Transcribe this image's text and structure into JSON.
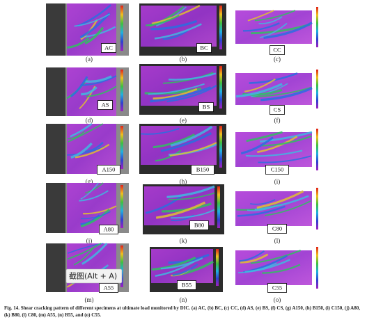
{
  "panels": [
    {
      "letter": "(a)",
      "specimen": "AC"
    },
    {
      "letter": "(b)",
      "specimen": "BC"
    },
    {
      "letter": "(c)",
      "specimen": "CC"
    },
    {
      "letter": "(d)",
      "specimen": "AS"
    },
    {
      "letter": "(e)",
      "specimen": "BS"
    },
    {
      "letter": "(f)",
      "specimen": "CS"
    },
    {
      "letter": "(g)",
      "specimen": "A150"
    },
    {
      "letter": "(h)",
      "specimen": "B150"
    },
    {
      "letter": "(i)",
      "specimen": "C150"
    },
    {
      "letter": "(j)",
      "specimen": "A80"
    },
    {
      "letter": "(k)",
      "specimen": "B80"
    },
    {
      "letter": "(l)",
      "specimen": "C80"
    },
    {
      "letter": "(m)",
      "specimen": "A55"
    },
    {
      "letter": "(n)",
      "specimen": "B55"
    },
    {
      "letter": "(o)",
      "specimen": "C55"
    }
  ],
  "tooltip": "截图(Alt + A)",
  "caption": "Fig. 14. Shear cracking pattern of different specimens at ultimate load monitored by DIC. (a) AC, (b) BC, (c) CC, (d) AS, (e) BS, (f) CS, (g) A150, (h) B150, (i) C150, (j) A80, (k) B80, (l) C80, (m) A55, (n) B55, and (o) C55."
}
